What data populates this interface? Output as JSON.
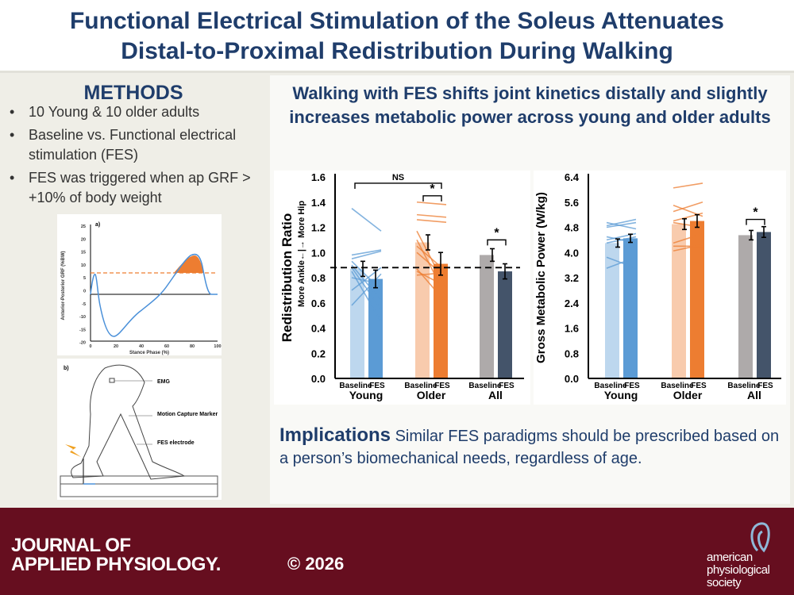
{
  "title": {
    "line1": "Functional Electrical Stimulation of the Soleus Attenuates",
    "line2": "Distal-to-Proximal Redistribution During Walking"
  },
  "methods": {
    "heading": "METHODS",
    "bullets": [
      "10 Young & 10 older adults",
      "Baseline vs. Functional electrical stimulation (FES)",
      "FES was triggered when ap GRF > +10% of body weight"
    ]
  },
  "figure_a": {
    "label": "a)",
    "ylabel": "Anterior-Posterior GRF (%BW)",
    "xlabel": "Stance Phase (%)",
    "yticks": [
      "25",
      "20",
      "15",
      "10",
      "5",
      "0",
      "-5",
      "-10",
      "-15",
      "-20"
    ],
    "xticks": [
      "0",
      "20",
      "40",
      "60",
      "80",
      "100"
    ],
    "threshold": 10,
    "colors": {
      "curve": "#4a90d9",
      "threshold": "#ed7d31"
    }
  },
  "figure_b": {
    "label": "b)",
    "labels": [
      "EMG",
      "Motion Capture Marker",
      "FES electrode"
    ]
  },
  "results": {
    "heading": "Walking with FES shifts joint kinetics distally and slightly increases metabolic power across young and older adults"
  },
  "chart_data": [
    {
      "type": "bar",
      "ylabel": "Redistribution Ratio",
      "ysublabel": "More Ankle←|→ More Hip",
      "ylim": [
        0,
        1.6
      ],
      "yticks": [
        "0.0",
        "0.2",
        "0.4",
        "0.6",
        "0.8",
        "1.0",
        "1.2",
        "1.4",
        "1.6"
      ],
      "groups": [
        "Young",
        "Older",
        "All"
      ],
      "conditions": [
        "Baseline",
        "FES"
      ],
      "values": [
        [
          0.87,
          0.79
        ],
        [
          1.08,
          0.91
        ],
        [
          0.98,
          0.85
        ]
      ],
      "errors": [
        [
          0.06,
          0.07
        ],
        [
          0.06,
          0.09
        ],
        [
          0.05,
          0.06
        ]
      ],
      "reference_line": 0.88,
      "colors": [
        [
          "#bdd7ee",
          "#5b9bd5"
        ],
        [
          "#f8cbad",
          "#ed7d31"
        ],
        [
          "#aeaaaa",
          "#44546a"
        ]
      ],
      "annotations": [
        {
          "text": "NS",
          "between": "Young Baseline - Older FES"
        },
        {
          "text": "*",
          "between": "Older Baseline - Older FES"
        },
        {
          "text": "*",
          "between": "All Baseline - All FES"
        }
      ],
      "individuals": {
        "Young": [
          [
            1.35,
            1.17
          ],
          [
            0.98,
            1.02
          ],
          [
            0.95,
            1.01
          ],
          [
            0.93,
            0.7
          ],
          [
            0.9,
            0.62
          ],
          [
            0.88,
            0.55
          ],
          [
            0.85,
            0.45
          ],
          [
            0.8,
            0.75
          ],
          [
            0.58,
            0.83
          ],
          [
            0.7,
            0.88
          ]
        ],
        "Older": [
          [
            1.4,
            1.38
          ],
          [
            1.3,
            1.28
          ],
          [
            1.26,
            1.24
          ],
          [
            1.17,
            0.72
          ],
          [
            1.1,
            0.65
          ],
          [
            1.0,
            0.8
          ],
          [
            0.87,
            0.6
          ],
          [
            0.85,
            0.73
          ],
          [
            0.82,
            0.84
          ],
          [
            1.05,
            0.85
          ]
        ]
      }
    },
    {
      "type": "bar",
      "ylabel": "Gross Metabolic Power (W/kg)",
      "ylim": [
        0,
        6.4
      ],
      "yticks": [
        "0.0",
        "0.8",
        "1.6",
        "2.4",
        "3.2",
        "4.0",
        "4.8",
        "5.6",
        "6.4"
      ],
      "groups": [
        "Young",
        "Older",
        "All"
      ],
      "conditions": [
        "Baseline",
        "FES"
      ],
      "values": [
        [
          4.3,
          4.45
        ],
        [
          4.9,
          5.0
        ],
        [
          4.55,
          4.65
        ]
      ],
      "errors": [
        [
          0.13,
          0.13
        ],
        [
          0.17,
          0.2
        ],
        [
          0.15,
          0.17
        ]
      ],
      "colors": [
        [
          "#bdd7ee",
          "#5b9bd5"
        ],
        [
          "#f8cbad",
          "#ed7d31"
        ],
        [
          "#aeaaaa",
          "#44546a"
        ]
      ],
      "annotations": [
        {
          "text": "*",
          "between": "All Baseline - All FES"
        }
      ],
      "individuals": {
        "Young": [
          [
            4.85,
            5.05
          ],
          [
            4.95,
            4.75
          ],
          [
            4.8,
            4.95
          ],
          [
            4.4,
            4.6
          ],
          [
            4.5,
            4.3
          ],
          [
            3.85,
            3.5
          ],
          [
            3.5,
            3.85
          ],
          [
            4.3,
            4.5
          ]
        ],
        "Older": [
          [
            6.05,
            6.2
          ],
          [
            5.3,
            5.6
          ],
          [
            5.5,
            5.15
          ],
          [
            5.0,
            5.25
          ],
          [
            4.95,
            4.8
          ],
          [
            4.3,
            4.6
          ],
          [
            4.2,
            4.2
          ],
          [
            4.05,
            4.25
          ]
        ]
      }
    }
  ],
  "implications": {
    "heading": "Implications",
    "text": " Similar FES paradigms should be prescribed based on a person’s biomechanical needs, regardless of age."
  },
  "footer": {
    "journal_line1": "JOURNAL OF",
    "journal_line2": "APPLIED PHYSIOLOGY.",
    "copyright": "© 2026",
    "society": [
      "american",
      "physiological",
      "society"
    ],
    "color": "#660e1f"
  }
}
